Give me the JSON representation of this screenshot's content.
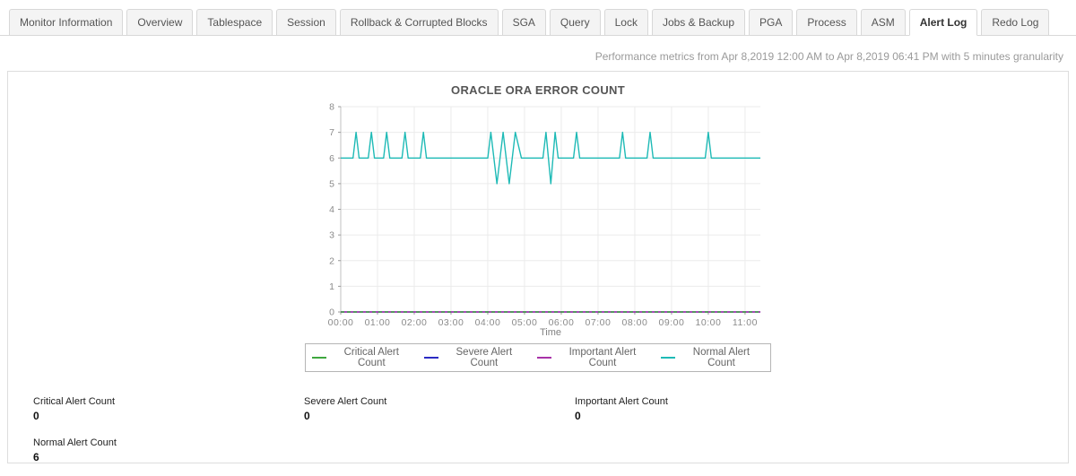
{
  "tabs": {
    "active": "Alert Log",
    "items": [
      {
        "label": "Monitor Information"
      },
      {
        "label": "Overview"
      },
      {
        "label": "Tablespace"
      },
      {
        "label": "Session"
      },
      {
        "label": "Rollback & Corrupted Blocks"
      },
      {
        "label": "SGA"
      },
      {
        "label": "Query"
      },
      {
        "label": "Lock"
      },
      {
        "label": "Jobs & Backup"
      },
      {
        "label": "PGA"
      },
      {
        "label": "Process"
      },
      {
        "label": "ASM"
      },
      {
        "label": "Alert Log"
      },
      {
        "label": "Redo Log"
      }
    ]
  },
  "subtitle": "Performance metrics from Apr 8,2019 12:00 AM to Apr 8,2019 06:41 PM with 5 minutes granularity",
  "chart_data": {
    "type": "line",
    "title": "ORACLE ORA ERROR COUNT",
    "xlabel": "Time",
    "ylabel": "",
    "ylim": [
      0,
      8
    ],
    "grid": true,
    "legend_position": "bottom",
    "y_ticks": [
      0,
      1,
      2,
      3,
      4,
      5,
      6,
      7,
      8
    ],
    "x_range_minutes": [
      0,
      685
    ],
    "x_ticks": [
      {
        "label": "00:00",
        "minutes": 0
      },
      {
        "label": "01:00",
        "minutes": 60
      },
      {
        "label": "02:00",
        "minutes": 120
      },
      {
        "label": "03:00",
        "minutes": 180
      },
      {
        "label": "04:00",
        "minutes": 240
      },
      {
        "label": "05:00",
        "minutes": 300
      },
      {
        "label": "06:00",
        "minutes": 360
      },
      {
        "label": "07:00",
        "minutes": 420
      },
      {
        "label": "08:00",
        "minutes": 480
      },
      {
        "label": "09:00",
        "minutes": 540
      },
      {
        "label": "10:00",
        "minutes": 600
      },
      {
        "label": "11:00",
        "minutes": 660
      }
    ],
    "draw_order": [
      1,
      2,
      0,
      3
    ],
    "series": [
      {
        "name": "Critical Alert Count",
        "color": "#3fa73f",
        "dash": "4,3",
        "points": [
          [
            0,
            0
          ],
          [
            685,
            0
          ]
        ]
      },
      {
        "name": "Severe Alert Count",
        "color": "#2b2bc3",
        "dash": "",
        "points": [
          [
            0,
            0
          ],
          [
            685,
            0
          ]
        ]
      },
      {
        "name": "Important Alert Count",
        "color": "#a832a8",
        "dash": "",
        "points": [
          [
            0,
            0
          ],
          [
            685,
            0
          ]
        ]
      },
      {
        "name": "Normal Alert Count",
        "color": "#1ebab6",
        "dash": "",
        "points": [
          [
            0,
            6
          ],
          [
            20,
            6
          ],
          [
            25,
            7
          ],
          [
            30,
            6
          ],
          [
            45,
            6
          ],
          [
            50,
            7
          ],
          [
            55,
            6
          ],
          [
            70,
            6
          ],
          [
            75,
            7
          ],
          [
            80,
            6
          ],
          [
            100,
            6
          ],
          [
            105,
            7
          ],
          [
            110,
            6
          ],
          [
            130,
            6
          ],
          [
            135,
            7
          ],
          [
            140,
            6
          ],
          [
            240,
            6
          ],
          [
            245,
            7
          ],
          [
            255,
            5
          ],
          [
            265,
            7
          ],
          [
            275,
            5
          ],
          [
            285,
            7
          ],
          [
            295,
            6
          ],
          [
            330,
            6
          ],
          [
            335,
            7
          ],
          [
            343,
            5
          ],
          [
            350,
            7
          ],
          [
            355,
            6
          ],
          [
            380,
            6
          ],
          [
            385,
            7
          ],
          [
            390,
            6
          ],
          [
            455,
            6
          ],
          [
            460,
            7
          ],
          [
            465,
            6
          ],
          [
            500,
            6
          ],
          [
            505,
            7
          ],
          [
            510,
            6
          ],
          [
            595,
            6
          ],
          [
            600,
            7
          ],
          [
            605,
            6
          ],
          [
            685,
            6
          ]
        ]
      }
    ]
  },
  "stats": [
    {
      "label": "Critical Alert Count",
      "value": "0"
    },
    {
      "label": "Severe Alert Count",
      "value": "0"
    },
    {
      "label": "Important Alert Count",
      "value": "0"
    },
    {
      "label": "Normal Alert Count",
      "value": "6"
    }
  ],
  "colors": {
    "accent_teal": "#1ebab6",
    "tab_border": "#d8d8d8",
    "panel_border": "#dddddd",
    "grid_line": "#ebebeb",
    "axis_line": "#c0c0c0",
    "axis_text": "#8a8a8a"
  }
}
